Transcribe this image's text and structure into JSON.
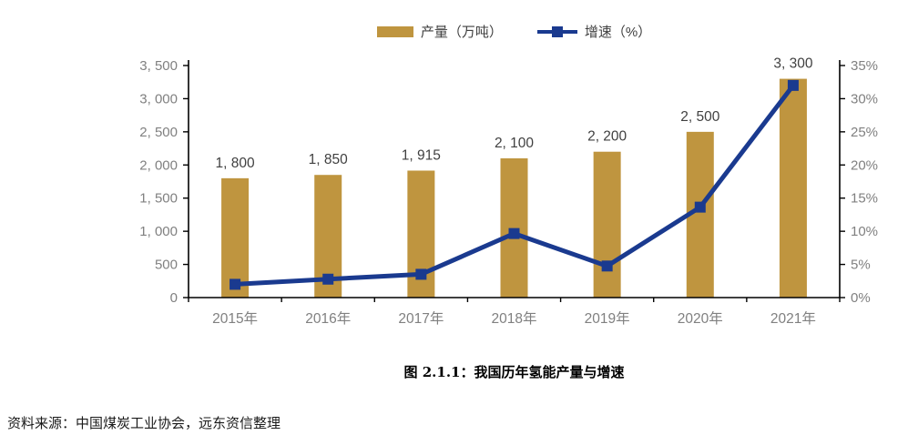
{
  "figure": {
    "title": "图 2.1.1：我国历年氢能产量与增速",
    "source": "资料来源：中国煤炭工业协会，远东资信整理"
  },
  "colors": {
    "bar": "#BF953F",
    "line": "#1A3A8F",
    "axis": "#000000",
    "tick_label": "#808080",
    "data_label": "#404040",
    "background": "#FFFFFF"
  },
  "chart_data": {
    "type": "bar",
    "subtype": "bar-line-combo",
    "categories": [
      "2015年",
      "2016年",
      "2017年",
      "2018年",
      "2019年",
      "2020年",
      "2021年"
    ],
    "series": [
      {
        "name": "产量（万吨）",
        "type": "bar",
        "axis": "left",
        "color": "#BF953F",
        "values": [
          1800,
          1850,
          1915,
          2100,
          2200,
          2500,
          3300
        ],
        "labels": [
          "1, 800",
          "1, 850",
          "1, 915",
          "2, 100",
          "2, 200",
          "2, 500",
          "3, 300"
        ]
      },
      {
        "name": "增速（%）",
        "type": "line",
        "axis": "right",
        "color": "#1A3A8F",
        "marker": "square",
        "values": [
          2.0,
          2.78,
          3.51,
          9.66,
          4.76,
          13.64,
          32.0
        ]
      }
    ],
    "left_axis": {
      "min": 0,
      "max": 3500,
      "step": 500,
      "tick_labels": [
        "0",
        "500",
        "1, 000",
        "1, 500",
        "2, 000",
        "2, 500",
        "3, 000",
        "3, 500"
      ]
    },
    "right_axis": {
      "min": 0,
      "max": 35,
      "step": 5,
      "tick_labels": [
        "0%",
        "5%",
        "10%",
        "15%",
        "20%",
        "25%",
        "30%",
        "35%"
      ]
    },
    "grid": false,
    "legend_position": "top-center",
    "title": "图 2.1.1：我国历年氢能产量与增速"
  }
}
